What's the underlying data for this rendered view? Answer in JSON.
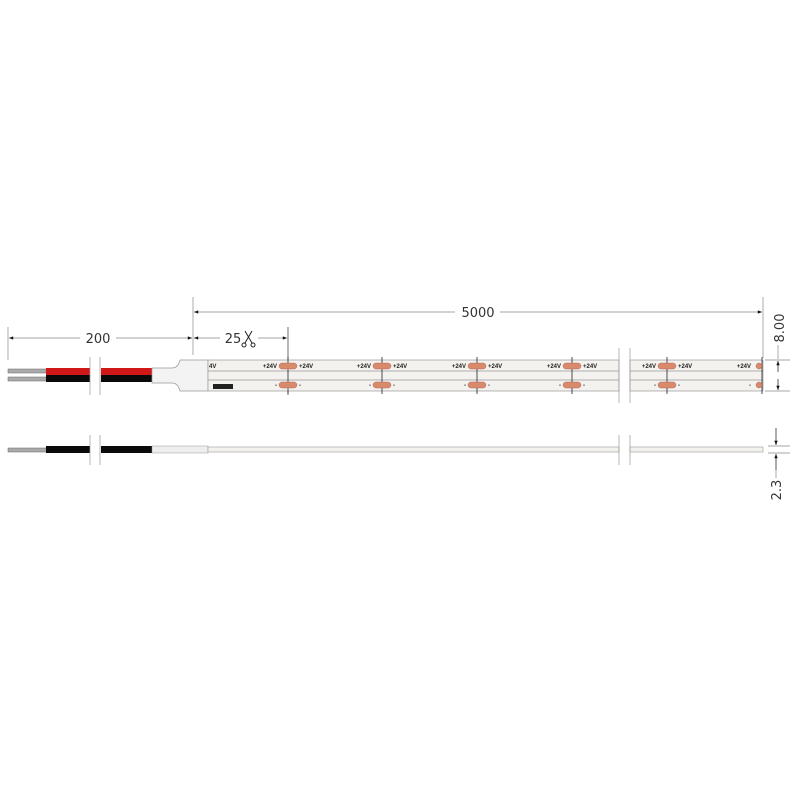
{
  "dimensions": {
    "strip_length": "5000",
    "lead_length": "200",
    "cut_interval": "25",
    "width": "8.00",
    "height": "2.3"
  },
  "pad_labels": {
    "positive": "+24V",
    "negative": "-",
    "partial_positive": "4V"
  },
  "icons": {
    "cut_mark": "scissors-icon"
  },
  "colors": {
    "red_wire": "#d01818",
    "black_wire": "#0a0a0a",
    "led_pad": "#d98a6a",
    "strip": "#f4f2ee",
    "conductor": "#999999"
  }
}
